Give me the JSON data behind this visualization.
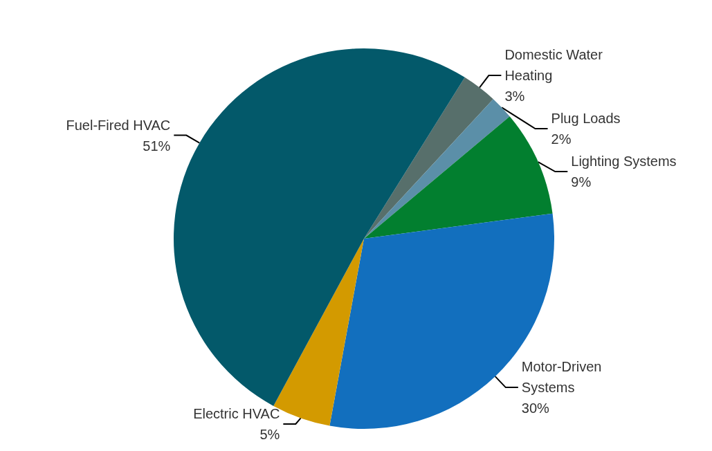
{
  "chart_data": {
    "type": "pie",
    "categories": [
      "Domestic Water Heating",
      "Plug Loads",
      "Lighting Systems",
      "Motor-Driven Systems",
      "Electric HVAC",
      "Fuel-Fired HVAC"
    ],
    "values": [
      3,
      2,
      9,
      30,
      5,
      51
    ],
    "value_labels": [
      "3%",
      "2%",
      "9%",
      "30%",
      "5%",
      "51%"
    ],
    "colors": [
      "#576f6b",
      "#5b8fa8",
      "#027f2f",
      "#126fbe",
      "#d39a00",
      "#03596a"
    ],
    "legend": false
  }
}
